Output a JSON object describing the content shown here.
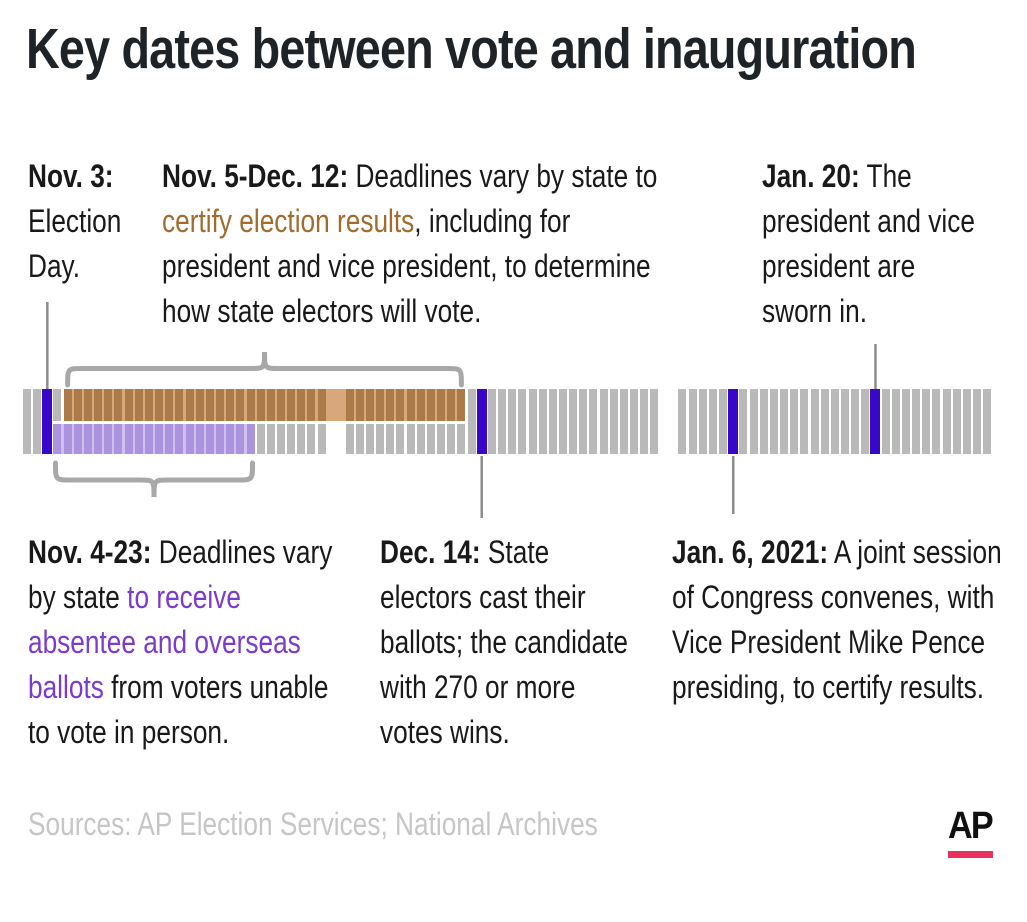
{
  "title": "Key dates between vote and inauguration",
  "annotations": {
    "top": [
      {
        "id": "nov3",
        "segments": [
          {
            "text": "Nov. 3:",
            "style": "bold"
          },
          {
            "text": " Election Day.",
            "style": "normal"
          }
        ]
      },
      {
        "id": "nov5-dec12",
        "segments": [
          {
            "text": "Nov. 5-Dec. 12:",
            "style": "bold"
          },
          {
            "text": " Deadlines vary by state to ",
            "style": "normal"
          },
          {
            "text": "certify election results",
            "style": "brown"
          },
          {
            "text": ", including for president and vice president, to determine how state electors will vote.",
            "style": "normal"
          }
        ]
      },
      {
        "id": "jan20",
        "segments": [
          {
            "text": "Jan. 20:",
            "style": "bold"
          },
          {
            "text": " The president and vice president are sworn in.",
            "style": "normal"
          }
        ]
      }
    ],
    "bottom": [
      {
        "id": "nov4-23",
        "segments": [
          {
            "text": "Nov. 4-23:",
            "style": "bold"
          },
          {
            "text": " Deadlines vary by state ",
            "style": "normal"
          },
          {
            "text": "to receive absentee and overseas ballots",
            "style": "purple"
          },
          {
            "text": " from voters unable to vote in person.",
            "style": "normal"
          }
        ]
      },
      {
        "id": "dec14",
        "segments": [
          {
            "text": "Dec. 14:",
            "style": "bold"
          },
          {
            "text": " State electors cast their ballots; the candidate with 270 or more votes wins.",
            "style": "normal"
          }
        ]
      },
      {
        "id": "jan6",
        "segments": [
          {
            "text": "Jan. 6, 2021:",
            "style": "bold"
          },
          {
            "text": " A joint session of Congress convenes, with Vice President Mike Pence presiding, to certify results.",
            "style": "normal"
          }
        ]
      }
    ]
  },
  "footer": {
    "sources": "Sources: AP Election Services; National Archives",
    "logo": "AP"
  },
  "colors": {
    "title_ink": "#1d2327",
    "body_ink": "#191919",
    "certify_brown_text": "#a16c2d",
    "absentee_purple_text": "#7b3bcd",
    "footer_gray": "#c6c6c6",
    "ap_pink": "#e8315f",
    "brace_gray": "#a8a8a8",
    "pointer_gray": "#8c8c8c"
  },
  "chart_data": {
    "type": "timeline",
    "title": "Key dates between vote and inauguration",
    "tick_unit": "day",
    "tick_gray": "#b9b9b9",
    "marker_color": "#3807c9",
    "months": [
      {
        "name": "November",
        "days": 30
      },
      {
        "name": "December",
        "days": 31
      },
      {
        "name": "January",
        "days": 31
      }
    ],
    "markers": [
      {
        "date": "Nov. 3",
        "month": 0,
        "day": 3,
        "label": "Election Day.",
        "callout": "up"
      },
      {
        "date": "Dec. 14",
        "month": 1,
        "day": 14,
        "label": "State electors cast their ballots; the candidate with 270 or more votes wins.",
        "callout": "down"
      },
      {
        "date": "Jan. 6, 2021",
        "month": 2,
        "day": 6,
        "label": "A joint session of Congress convenes, with Vice President Mike Pence presiding, to certify results.",
        "callout": "down"
      },
      {
        "date": "Jan. 20",
        "month": 2,
        "day": 20,
        "label": "The president and vice president are sworn in.",
        "callout": "up"
      }
    ],
    "ranges": [
      {
        "label": "certify election results",
        "date_span": "Nov. 5-Dec. 12",
        "start": {
          "month": 0,
          "day": 5
        },
        "end": {
          "month": 1,
          "day": 12
        },
        "side": "top",
        "band_bg": "#d9a87a",
        "tick_color": "#ab7c4a",
        "brace": "above"
      },
      {
        "label": "to receive absentee and overseas ballots",
        "date_span": "Nov. 4-23",
        "start": {
          "month": 0,
          "day": 4
        },
        "end": {
          "month": 0,
          "day": 23
        },
        "side": "bottom",
        "band_bg": "#cfc0f0",
        "tick_color": "#ab93de",
        "brace": "below"
      }
    ]
  }
}
